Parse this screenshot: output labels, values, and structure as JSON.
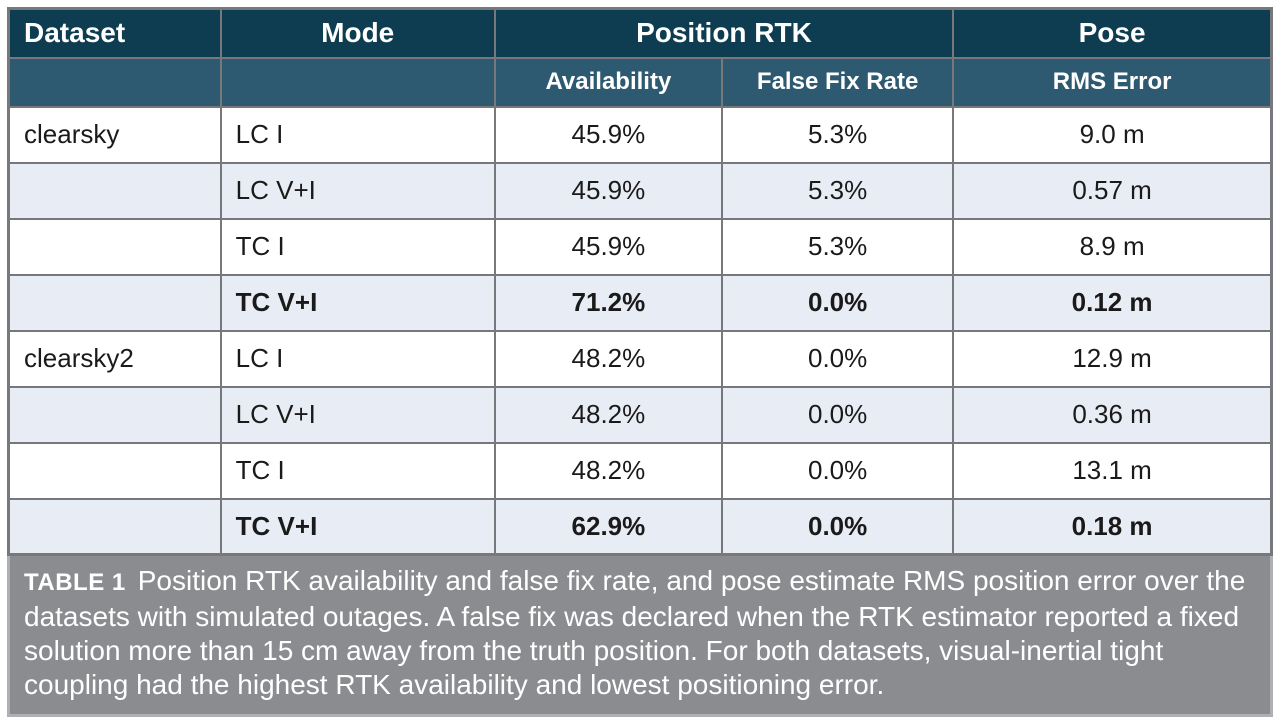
{
  "table": {
    "header": {
      "dataset": "Dataset",
      "mode": "Mode",
      "position_rtk": "Position RTK",
      "pose": "Pose"
    },
    "subheader": {
      "availability": "Availability",
      "false_fix_rate": "False Fix Rate",
      "rms_error": "RMS Error"
    },
    "rows": [
      {
        "dataset": "clearsky",
        "mode": "LC I",
        "availability": "45.9%",
        "false_fix_rate": "5.3%",
        "rms_error": "9.0 m",
        "bold": false
      },
      {
        "dataset": "",
        "mode": "LC V+I",
        "availability": "45.9%",
        "false_fix_rate": "5.3%",
        "rms_error": "0.57 m",
        "bold": false
      },
      {
        "dataset": "",
        "mode": "TC I",
        "availability": "45.9%",
        "false_fix_rate": "5.3%",
        "rms_error": "8.9 m",
        "bold": false
      },
      {
        "dataset": "",
        "mode": "TC V+I",
        "availability": "71.2%",
        "false_fix_rate": "0.0%",
        "rms_error": "0.12 m",
        "bold": true
      },
      {
        "dataset": "clearsky2",
        "mode": "LC I",
        "availability": "48.2%",
        "false_fix_rate": "0.0%",
        "rms_error": "12.9 m",
        "bold": false
      },
      {
        "dataset": "",
        "mode": "LC V+I",
        "availability": "48.2%",
        "false_fix_rate": "0.0%",
        "rms_error": "0.36 m",
        "bold": false
      },
      {
        "dataset": "",
        "mode": "TC I",
        "availability": "48.2%",
        "false_fix_rate": "0.0%",
        "rms_error": "13.1 m",
        "bold": false
      },
      {
        "dataset": "",
        "mode": "TC V+I",
        "availability": "62.9%",
        "false_fix_rate": "0.0%",
        "rms_error": "0.18 m",
        "bold": true
      }
    ]
  },
  "caption": {
    "label": "TABLE 1",
    "text": "Position RTK availability and false fix rate, and pose estimate RMS position error over the datasets with simulated outages. A false fix was declared when the RTK estimator reported a fixed solution more than 15 cm away from the truth position. For both datasets, visual-inertial tight coupling had the highest RTK availability and lowest positioning error."
  },
  "colors": {
    "header_main_bg": "#0e3d51",
    "header_sub_bg": "#2d5a70",
    "row_alt_bg": "#e8ecf4",
    "row_bg": "#ffffff",
    "grid_border": "#77787b",
    "caption_bg": "#8a8c8f",
    "caption_border": "#aeb0b3",
    "header_text": "#ffffff",
    "caption_text": "#ffffff",
    "body_text": "#1a1a1a"
  }
}
